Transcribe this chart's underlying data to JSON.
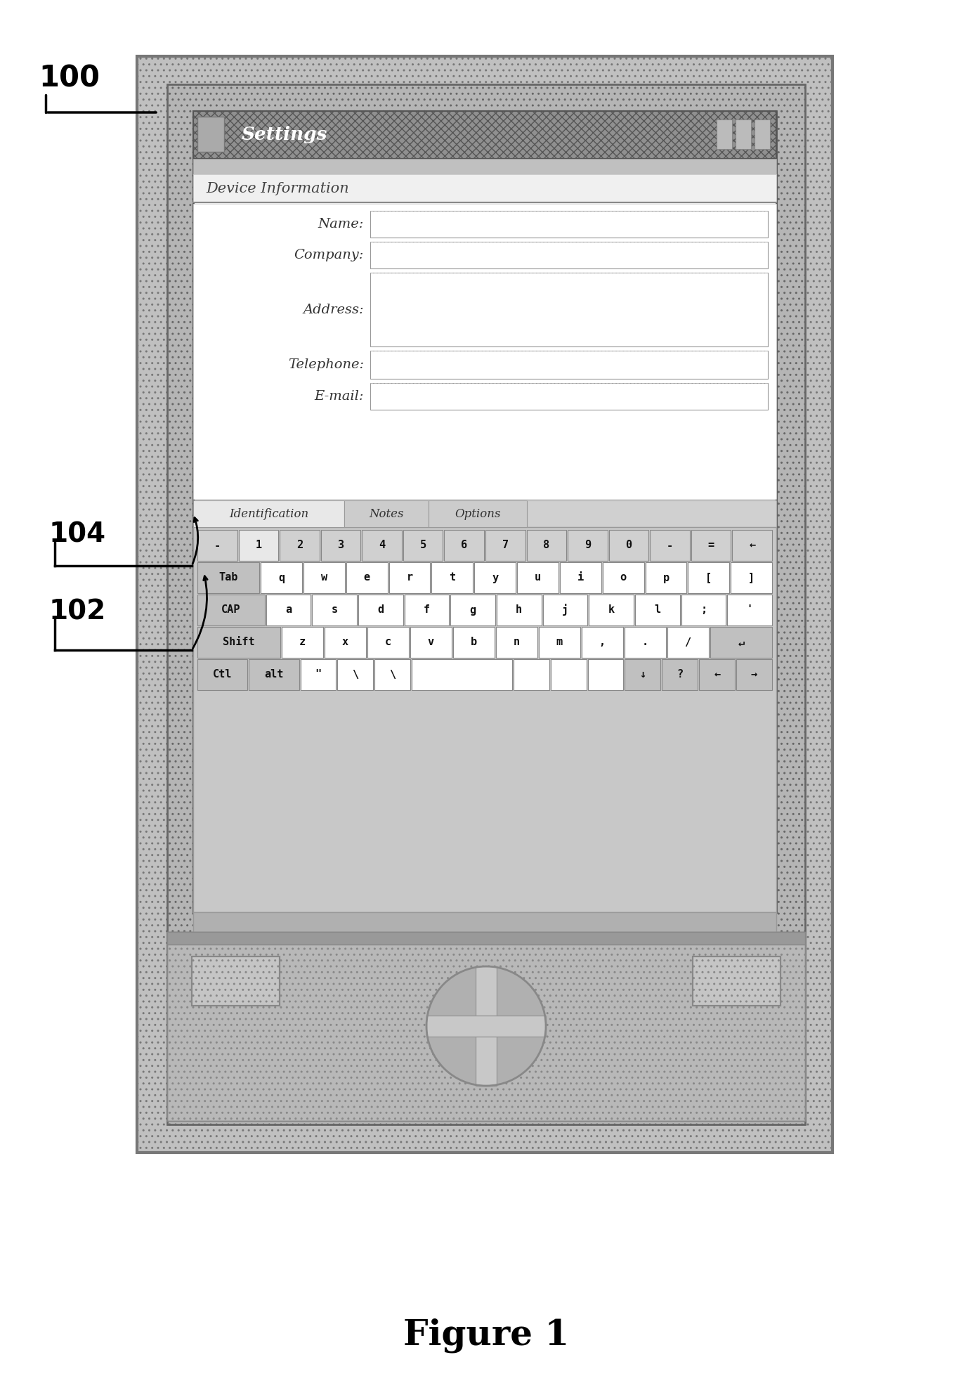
{
  "figure_title": "Figure 1",
  "label_100": "100",
  "label_102": "102",
  "label_104": "104",
  "title_bar_text": "Settings",
  "device_info_text": "Device Information",
  "form_labels": [
    "Name:",
    "Company:",
    "Address:",
    "Telephone:",
    "E-mail:"
  ],
  "tab_labels": [
    "Identification",
    "Notes",
    "Options"
  ],
  "keyboard_row0": [
    "-",
    "1",
    "2",
    "3",
    "4",
    "5",
    "6",
    "7",
    "8",
    "9",
    "0",
    "-",
    "=",
    "←"
  ],
  "keyboard_row1": [
    "Tab",
    "q",
    "w",
    "e",
    "r",
    "t",
    "y",
    "u",
    "i",
    "o",
    "p",
    "[",
    "]"
  ],
  "keyboard_row2": [
    "CAP",
    "a",
    "s",
    "d",
    "f",
    "g",
    "h",
    "j",
    "k",
    "l",
    ";",
    "'"
  ],
  "keyboard_row3": [
    "Shift",
    "z",
    "x",
    "c",
    "v",
    "b",
    "n",
    "m",
    ",",
    ".",
    "/",
    "↵"
  ],
  "keyboard_row4": [
    "Ctl",
    "alt",
    "\"",
    "\\",
    "\\",
    "",
    "",
    "",
    "",
    "↓",
    "?",
    "←",
    "→"
  ],
  "device_outer_color": "#c0c0c0",
  "device_bezel_color": "#b5b5b5",
  "screen_bg": "#f0f0f0",
  "titlebar_color": "#8a8a8a",
  "keyboard_bg": "#c8c8c8",
  "key_normal_color": "#ffffff",
  "key_special_color": "#c0c0c0",
  "key_row0_color": "#d0d0d0",
  "form_bg": "#ffffff",
  "tab_active_color": "#e8e8e8",
  "tab_inactive_color": "#cccccc",
  "info_header_color": "#e8e8e8"
}
